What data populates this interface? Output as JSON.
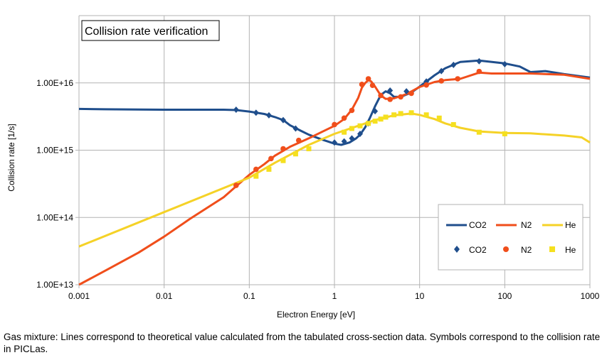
{
  "caption": "Gas mixture: Lines correspond to theoretical value calculated from the tabulated cross-section data. Symbols correspond to the collision rate in PICLas.",
  "chart_data": {
    "type": "line",
    "title": "Collision rate verification",
    "xlabel": "Electron Energy [eV]",
    "ylabel": "Collision rate [1/s]",
    "x_scale": "log",
    "y_scale": "log",
    "xlim": [
      0.001,
      1000
    ],
    "ylim": [
      10000000000000.0,
      1e+17
    ],
    "x_ticks": [
      0.001,
      0.01,
      0.1,
      1,
      10,
      100,
      1000
    ],
    "x_tick_labels": [
      "0.001",
      "0.01",
      "0.1",
      "1",
      "10",
      "100",
      "1000"
    ],
    "y_ticks": [
      10000000000000.0,
      100000000000000.0,
      1000000000000000.0,
      1e+16
    ],
    "y_tick_labels": [
      "1.00E+13",
      "1.00E+14",
      "1.00E+15",
      "1.00E+16"
    ],
    "grid": true,
    "legend_position": "bottom-right",
    "series": [
      {
        "name": "CO2",
        "kind": "line",
        "color": "#1f4e8c",
        "x": [
          0.001,
          0.002,
          0.005,
          0.01,
          0.02,
          0.05,
          0.07,
          0.1,
          0.15,
          0.2,
          0.25,
          0.3,
          0.4,
          0.5,
          0.7,
          1.0,
          1.2,
          1.5,
          1.8,
          2.0,
          2.3,
          2.6,
          3.0,
          3.5,
          4.0,
          4.5,
          5.0,
          6.0,
          8.0,
          10,
          15,
          20,
          30,
          50,
          100,
          150,
          200,
          300,
          500,
          1000
        ],
        "y": [
          4100000000000000.0,
          4050000000000000.0,
          4020000000000000.0,
          4000000000000000.0,
          4000000000000000.0,
          4000000000000000.0,
          3950000000000000.0,
          3750000000000000.0,
          3450000000000000.0,
          3100000000000000.0,
          2800000000000000.0,
          2350000000000000.0,
          1950000000000000.0,
          1700000000000000.0,
          1450000000000000.0,
          1250000000000000.0,
          1200000000000000.0,
          1300000000000000.0,
          1500000000000000.0,
          1700000000000000.0,
          2200000000000000.0,
          3000000000000000.0,
          4500000000000000.0,
          6600000000000000.0,
          7500000000000000.0,
          7000000000000000.0,
          6200000000000000.0,
          6200000000000000.0,
          7200000000000000.0,
          8800000000000000.0,
          1.3e+16,
          1.65e+16,
          2.05e+16,
          2.15e+16,
          1.95e+16,
          1.75e+16,
          1.45e+16,
          1.5e+16,
          1.35e+16,
          1.2e+16
        ]
      },
      {
        "name": "N2",
        "kind": "line",
        "color": "#f04e1b",
        "x": [
          0.001,
          0.002,
          0.005,
          0.01,
          0.02,
          0.05,
          0.07,
          0.1,
          0.15,
          0.2,
          0.3,
          0.5,
          0.7,
          1.0,
          1.3,
          1.6,
          1.9,
          2.1,
          2.3,
          2.5,
          2.7,
          3.0,
          3.5,
          4.0,
          5.0,
          7.0,
          10,
          15,
          20,
          30,
          50,
          70,
          100,
          200,
          500,
          1000
        ],
        "y": [
          10000000000000.0,
          16000000000000.0,
          30000000000000.0,
          52000000000000.0,
          95000000000000.0,
          200000000000000.0,
          290000000000000.0,
          430000000000000.0,
          620000000000000.0,
          830000000000000.0,
          1120000000000000.0,
          1500000000000000.0,
          1850000000000000.0,
          2300000000000000.0,
          2900000000000000.0,
          4000000000000000.0,
          6000000000000000.0,
          8500000000000000.0,
          1e+16,
          1.1e+16,
          1.05e+16,
          8800000000000000.0,
          6500000000000000.0,
          5800000000000000.0,
          5900000000000000.0,
          6800000000000000.0,
          8700000000000000.0,
          1.03e+16,
          1.1e+16,
          1.15e+16,
          1.42e+16,
          1.38e+16,
          1.38e+16,
          1.38e+16,
          1.32e+16,
          1.15e+16
        ]
      },
      {
        "name": "He",
        "kind": "line",
        "color": "#f5d227",
        "x": [
          0.001,
          0.01,
          0.1,
          0.2,
          0.5,
          1.0,
          2.0,
          3.0,
          5.0,
          8.0,
          10,
          15,
          20,
          30,
          50,
          100,
          200,
          500,
          800,
          1000
        ],
        "y": [
          37000000000000.0,
          120000000000000.0,
          390000000000000.0,
          650000000000000.0,
          1200000000000000.0,
          1750000000000000.0,
          2350000000000000.0,
          2800000000000000.0,
          3300000000000000.0,
          3500000000000000.0,
          3350000000000000.0,
          2900000000000000.0,
          2500000000000000.0,
          2150000000000000.0,
          1900000000000000.0,
          1800000000000000.0,
          1780000000000000.0,
          1650000000000000.0,
          1550000000000000.0,
          1300000000000000.0
        ]
      },
      {
        "name": "CO2",
        "kind": "marker",
        "marker": "diamond",
        "color": "#1f4e8c",
        "x": [
          0.07,
          0.12,
          0.17,
          0.25,
          0.35,
          1.0,
          1.3,
          1.6,
          2.0,
          2.5,
          3.0,
          4.5,
          7.0,
          12,
          18,
          25,
          50,
          100
        ],
        "y": [
          4000000000000000.0,
          3600000000000000.0,
          3300000000000000.0,
          2800000000000000.0,
          2100000000000000.0,
          1300000000000000.0,
          1350000000000000.0,
          1500000000000000.0,
          1750000000000000.0,
          2500000000000000.0,
          3800000000000000.0,
          7700000000000000.0,
          7500000000000000.0,
          1.05e+16,
          1.5e+16,
          1.85e+16,
          2.1e+16,
          1.9e+16
        ]
      },
      {
        "name": "N2",
        "kind": "marker",
        "marker": "circle",
        "color": "#f04e1b",
        "x": [
          0.07,
          0.12,
          0.18,
          0.25,
          0.38,
          1.0,
          1.3,
          1.6,
          2.1,
          2.5,
          2.8,
          3.5,
          4.5,
          6.0,
          8.0,
          12,
          18,
          28,
          50
        ],
        "y": [
          300000000000000.0,
          520000000000000.0,
          750000000000000.0,
          1050000000000000.0,
          1400000000000000.0,
          2400000000000000.0,
          3000000000000000.0,
          3900000000000000.0,
          9500000000000000.0,
          1.15e+16,
          9200000000000000.0,
          6500000000000000.0,
          5700000000000000.0,
          6200000000000000.0,
          7000000000000000.0,
          9300000000000000.0,
          1.07e+16,
          1.15e+16,
          1.48e+16
        ]
      },
      {
        "name": "He",
        "kind": "marker",
        "marker": "square",
        "color": "#f5e01f",
        "x": [
          0.12,
          0.17,
          0.25,
          0.35,
          0.5,
          1.3,
          1.6,
          2.0,
          2.5,
          3.0,
          3.5,
          4.0,
          5.0,
          6.0,
          8.0,
          12,
          17,
          25,
          50,
          100
        ],
        "y": [
          410000000000000.0,
          520000000000000.0,
          700000000000000.0,
          880000000000000.0,
          1050000000000000.0,
          1850000000000000.0,
          2100000000000000.0,
          2300000000000000.0,
          2500000000000000.0,
          2700000000000000.0,
          2900000000000000.0,
          3100000000000000.0,
          3350000000000000.0,
          3500000000000000.0,
          3600000000000000.0,
          3350000000000000.0,
          3000000000000000.0,
          2400000000000000.0,
          1850000000000000.0,
          1750000000000000.0
        ]
      }
    ]
  }
}
